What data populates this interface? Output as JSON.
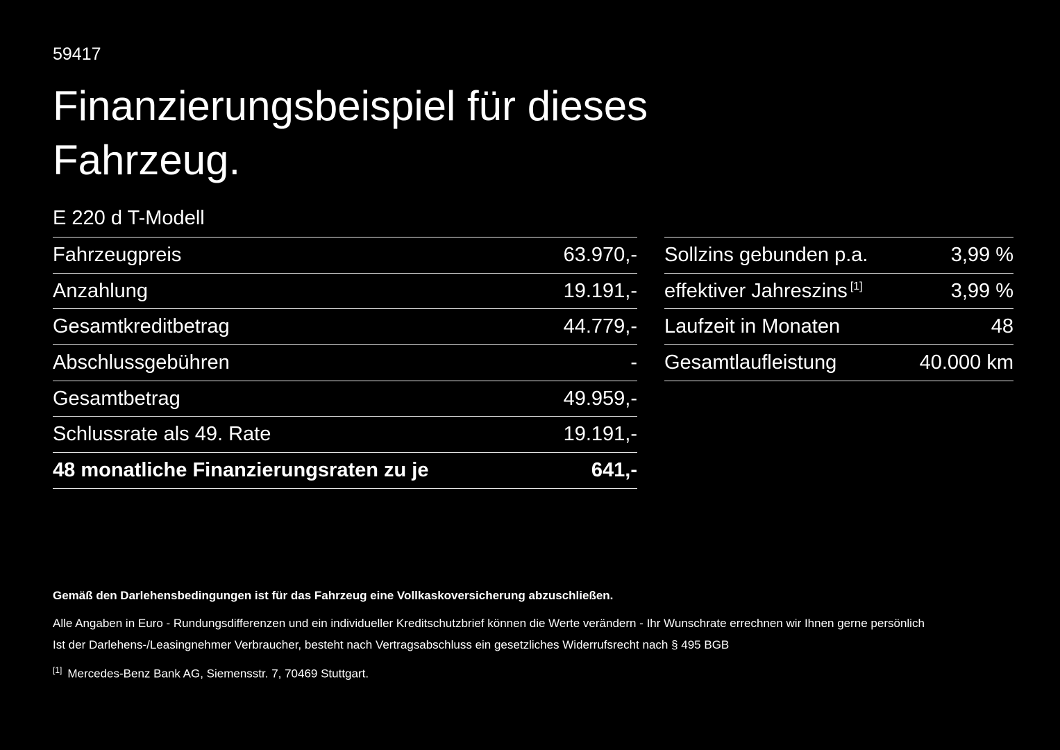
{
  "page": {
    "doc_id": "59417",
    "title_line1": "Finanzierungsbeispiel für dieses",
    "title_line2": "Fahrzeug.",
    "model": "E 220 d T-Modell",
    "text_color": "#ffffff",
    "background_color": "#000000",
    "divider_color": "#e8e8e8"
  },
  "chart_data": {
    "type": "table",
    "title": "Finanzierungsbeispiel für dieses Fahrzeug.",
    "left_rows": [
      {
        "label": "Fahrzeugpreis",
        "value": "63.970,-"
      },
      {
        "label": "Anzahlung",
        "value": "19.191,-"
      },
      {
        "label": "Gesamtkreditbetrag",
        "value": "44.779,-"
      },
      {
        "label": "Abschlussgebühren",
        "value": "-"
      },
      {
        "label": "Gesamtbetrag",
        "value": "49.959,-"
      },
      {
        "label": "Schlussrate als 49. Rate",
        "value": "19.191,-"
      },
      {
        "label": "48 monatliche Finanzierungsraten zu je",
        "value": "641,-"
      }
    ],
    "right_rows": [
      {
        "label": "Sollzins gebunden p.a.",
        "value": "3,99 %"
      },
      {
        "label": "effektiver Jahreszins",
        "sup": "[1]",
        "value": "3,99 %"
      },
      {
        "label": "Laufzeit in Monaten",
        "value": "48"
      },
      {
        "label": "Gesamtlaufleistung",
        "value": "40.000 km"
      }
    ]
  },
  "left_table": {
    "rows": [
      {
        "label": "Fahrzeugpreis",
        "value": "63.970,-"
      },
      {
        "label": "Anzahlung",
        "value": "19.191,-"
      },
      {
        "label": "Gesamtkreditbetrag",
        "value": "44.779,-"
      },
      {
        "label": "Abschlussgebühren",
        "value": "-"
      },
      {
        "label": "Gesamtbetrag",
        "value": "49.959,-"
      },
      {
        "label": "Schlussrate als 49. Rate",
        "value": "19.191,-"
      },
      {
        "label": "48 monatliche Finanzierungsraten zu je",
        "value": "641,-"
      }
    ]
  },
  "right_table": {
    "rows": [
      {
        "label": "Sollzins gebunden p.a.",
        "sup": "",
        "value": "3,99 %"
      },
      {
        "label": "effektiver Jahreszins",
        "sup": "[1]",
        "value": "3,99 %"
      },
      {
        "label": "Laufzeit in Monaten",
        "sup": "",
        "value": "48"
      },
      {
        "label": "Gesamtlaufleistung",
        "sup": "",
        "value": "40.000 km"
      }
    ]
  },
  "footnotes": {
    "bold_note": "Gemäß den Darlehensbedingungen ist für das Fahrzeug eine Vollkaskoversicherung abzuschließen.",
    "note1": "Alle Angaben in Euro - Rundungsdifferenzen und ein individueller Kreditschutzbrief können die Werte verändern - Ihr Wunschrate errechnen wir Ihnen gerne persönlich",
    "note2": "Ist der Darlehens-/Leasingnehmer Verbraucher, besteht nach Vertragsabschluss ein gesetzliches Widerrufsrecht nach § 495 BGB",
    "ref_marker": "[1]",
    "ref_text": "Mercedes-Benz Bank AG, Siemensstr. 7, 70469 Stuttgart."
  }
}
